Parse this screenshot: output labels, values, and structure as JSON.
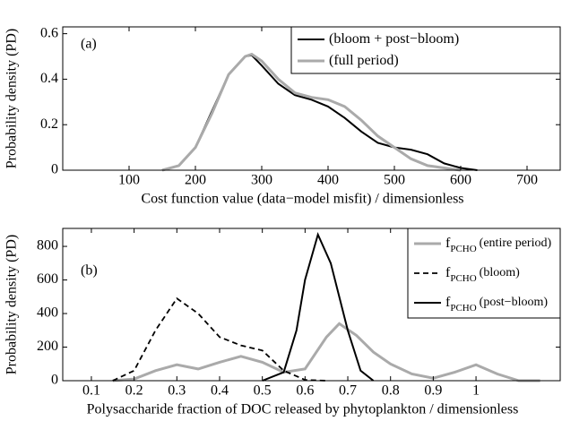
{
  "chart_data": [
    {
      "type": "line",
      "annotation": "(a)",
      "x_label": "Cost function value (data−model misfit) / dimensionless",
      "y_label": "Probability density (PD)",
      "xlim": [
        0,
        750
      ],
      "ylim": [
        0,
        0.63
      ],
      "xticks": [
        100,
        200,
        300,
        400,
        500,
        600,
        700
      ],
      "yticks": [
        0,
        0.2,
        0.4,
        0.6
      ],
      "legend": "upper right",
      "series": [
        {
          "name": "(bloom + post−bloom)",
          "color": "#000000",
          "width": 2,
          "x": [
            150,
            175,
            200,
            225,
            250,
            275,
            285,
            300,
            325,
            350,
            375,
            400,
            425,
            450,
            475,
            500,
            525,
            550,
            575,
            600,
            625
          ],
          "values": [
            0,
            0.02,
            0.1,
            0.26,
            0.42,
            0.5,
            0.505,
            0.46,
            0.38,
            0.33,
            0.31,
            0.28,
            0.23,
            0.17,
            0.12,
            0.1,
            0.09,
            0.07,
            0.03,
            0.01,
            0
          ]
        },
        {
          "name": "(full period)",
          "color": "#aaaaaa",
          "width": 3,
          "x": [
            150,
            175,
            200,
            225,
            250,
            275,
            285,
            300,
            325,
            350,
            375,
            400,
            425,
            450,
            475,
            500,
            525,
            550,
            575,
            600
          ],
          "values": [
            0,
            0.02,
            0.1,
            0.25,
            0.42,
            0.5,
            0.51,
            0.48,
            0.4,
            0.34,
            0.32,
            0.31,
            0.28,
            0.22,
            0.15,
            0.1,
            0.05,
            0.02,
            0.01,
            0
          ]
        }
      ]
    },
    {
      "type": "line",
      "annotation": "(b)",
      "x_label": "Polysaccharide fraction of DOC released by phytoplankton / dimensionless",
      "y_label": "Probability density (PD)",
      "xlim": [
        0.033,
        1.197
      ],
      "ylim": [
        0,
        907
      ],
      "xticks": [
        0.1,
        0.2,
        0.3,
        0.4,
        0.5,
        0.6,
        0.7,
        0.8,
        0.9,
        1
      ],
      "yticks": [
        0,
        200,
        400,
        600,
        800
      ],
      "legend": "upper right",
      "series": [
        {
          "symbol": "f",
          "symbol_subscript": "PCHO",
          "name": "(entire period)",
          "color": "#aaaaaa",
          "width": 3,
          "dashed": false,
          "x": [
            0.15,
            0.2,
            0.25,
            0.3,
            0.35,
            0.4,
            0.45,
            0.5,
            0.55,
            0.6,
            0.65,
            0.68,
            0.72,
            0.76,
            0.8,
            0.85,
            0.9,
            0.95,
            1.0,
            1.05,
            1.1,
            1.15
          ],
          "values": [
            0,
            10,
            60,
            95,
            70,
            110,
            145,
            110,
            50,
            70,
            260,
            340,
            270,
            170,
            100,
            40,
            15,
            50,
            95,
            40,
            0,
            0
          ]
        },
        {
          "symbol": "f",
          "symbol_subscript": "PCHO",
          "name": "(bloom)",
          "color": "#000000",
          "width": 1.8,
          "dashed": true,
          "x": [
            0.15,
            0.2,
            0.25,
            0.3,
            0.35,
            0.4,
            0.45,
            0.5,
            0.55,
            0.6,
            0.65
          ],
          "values": [
            0,
            60,
            300,
            490,
            400,
            260,
            210,
            180,
            60,
            5,
            0
          ]
        },
        {
          "symbol": "f",
          "symbol_subscript": "PCHO",
          "name": "(post−bloom)",
          "color": "#000000",
          "width": 2,
          "dashed": false,
          "x": [
            0.5,
            0.55,
            0.58,
            0.6,
            0.63,
            0.66,
            0.7,
            0.73,
            0.76
          ],
          "values": [
            0,
            50,
            300,
            600,
            870,
            700,
            300,
            60,
            0
          ]
        }
      ]
    }
  ]
}
